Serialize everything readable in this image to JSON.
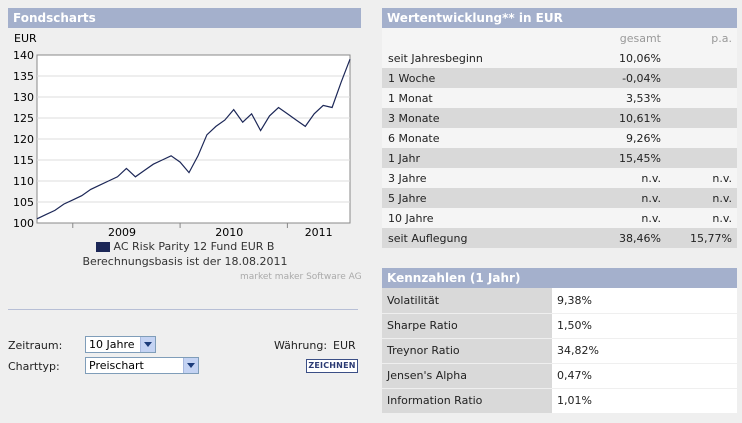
{
  "left_header": {
    "title": "Fondscharts"
  },
  "chart_data": {
    "type": "line",
    "ylabel": "EUR",
    "ylim": [
      100,
      140
    ],
    "yticks": [
      100,
      105,
      110,
      115,
      120,
      125,
      130,
      135,
      140
    ],
    "xticks": [
      "2009",
      "2010",
      "2011"
    ],
    "grid": true,
    "series": [
      {
        "name": "AC Risk Parity 12 Fund EUR B",
        "color": "#1c2757",
        "x": [
          "2008-09",
          "2008-10",
          "2008-11",
          "2008-12",
          "2009-01",
          "2009-02",
          "2009-03",
          "2009-04",
          "2009-05",
          "2009-06",
          "2009-07",
          "2009-08",
          "2009-09",
          "2009-10",
          "2009-11",
          "2009-12",
          "2010-01",
          "2010-02",
          "2010-03",
          "2010-04",
          "2010-05",
          "2010-06",
          "2010-07",
          "2010-08",
          "2010-09",
          "2010-10",
          "2010-11",
          "2010-12",
          "2011-01",
          "2011-02",
          "2011-03",
          "2011-04",
          "2011-05",
          "2011-06",
          "2011-07",
          "2011-08"
        ],
        "values": [
          101,
          102,
          103,
          104.5,
          105.5,
          106.5,
          108,
          109,
          110,
          111,
          113,
          111,
          112.5,
          114,
          115,
          116,
          114.5,
          112,
          116,
          121,
          123,
          124.5,
          127,
          124,
          126,
          122,
          125.5,
          127.5,
          126,
          124.5,
          123,
          126,
          128,
          127.5,
          133.5,
          139
        ]
      }
    ]
  },
  "legend": {
    "label": "AC Risk Parity 12 Fund EUR B"
  },
  "basis": {
    "text": "Berechnungsbasis ist der 18.08.2011"
  },
  "credit": {
    "text": "market maker Software AG"
  },
  "controls": {
    "zeitraum_label": "Zeitraum:",
    "zeitraum_value": "10 Jahre",
    "charttyp_label": "Charttyp:",
    "charttyp_value": "Preischart",
    "waehrung_label": "Währung:",
    "waehrung_value": "EUR",
    "draw_button": "ZEICHNEN"
  },
  "performance": {
    "title": "Wertentwicklung** in EUR",
    "col_total": "gesamt",
    "col_pa": "p.a.",
    "rows": [
      {
        "label": "seit Jahresbeginn",
        "total": "10,06%",
        "pa": ""
      },
      {
        "label": "1 Woche",
        "total": "-0,04%",
        "pa": ""
      },
      {
        "label": "1 Monat",
        "total": "3,53%",
        "pa": ""
      },
      {
        "label": "3 Monate",
        "total": "10,61%",
        "pa": ""
      },
      {
        "label": "6 Monate",
        "total": "9,26%",
        "pa": ""
      },
      {
        "label": "1 Jahr",
        "total": "15,45%",
        "pa": ""
      },
      {
        "label": "3 Jahre",
        "total": "n.v.",
        "pa": "n.v."
      },
      {
        "label": "5 Jahre",
        "total": "n.v.",
        "pa": "n.v."
      },
      {
        "label": "10 Jahre",
        "total": "n.v.",
        "pa": "n.v."
      },
      {
        "label": "seit Auflegung",
        "total": "38,46%",
        "pa": "15,77%"
      }
    ]
  },
  "kennzahlen": {
    "title": "Kennzahlen (1 Jahr)",
    "rows": [
      {
        "label": "Volatilität",
        "value": "9,38%"
      },
      {
        "label": "Sharpe Ratio",
        "value": "1,50%"
      },
      {
        "label": "Treynor Ratio",
        "value": "34,82%"
      },
      {
        "label": "Jensen's Alpha",
        "value": "0,47%"
      },
      {
        "label": "Information Ratio",
        "value": "1,01%"
      }
    ]
  }
}
